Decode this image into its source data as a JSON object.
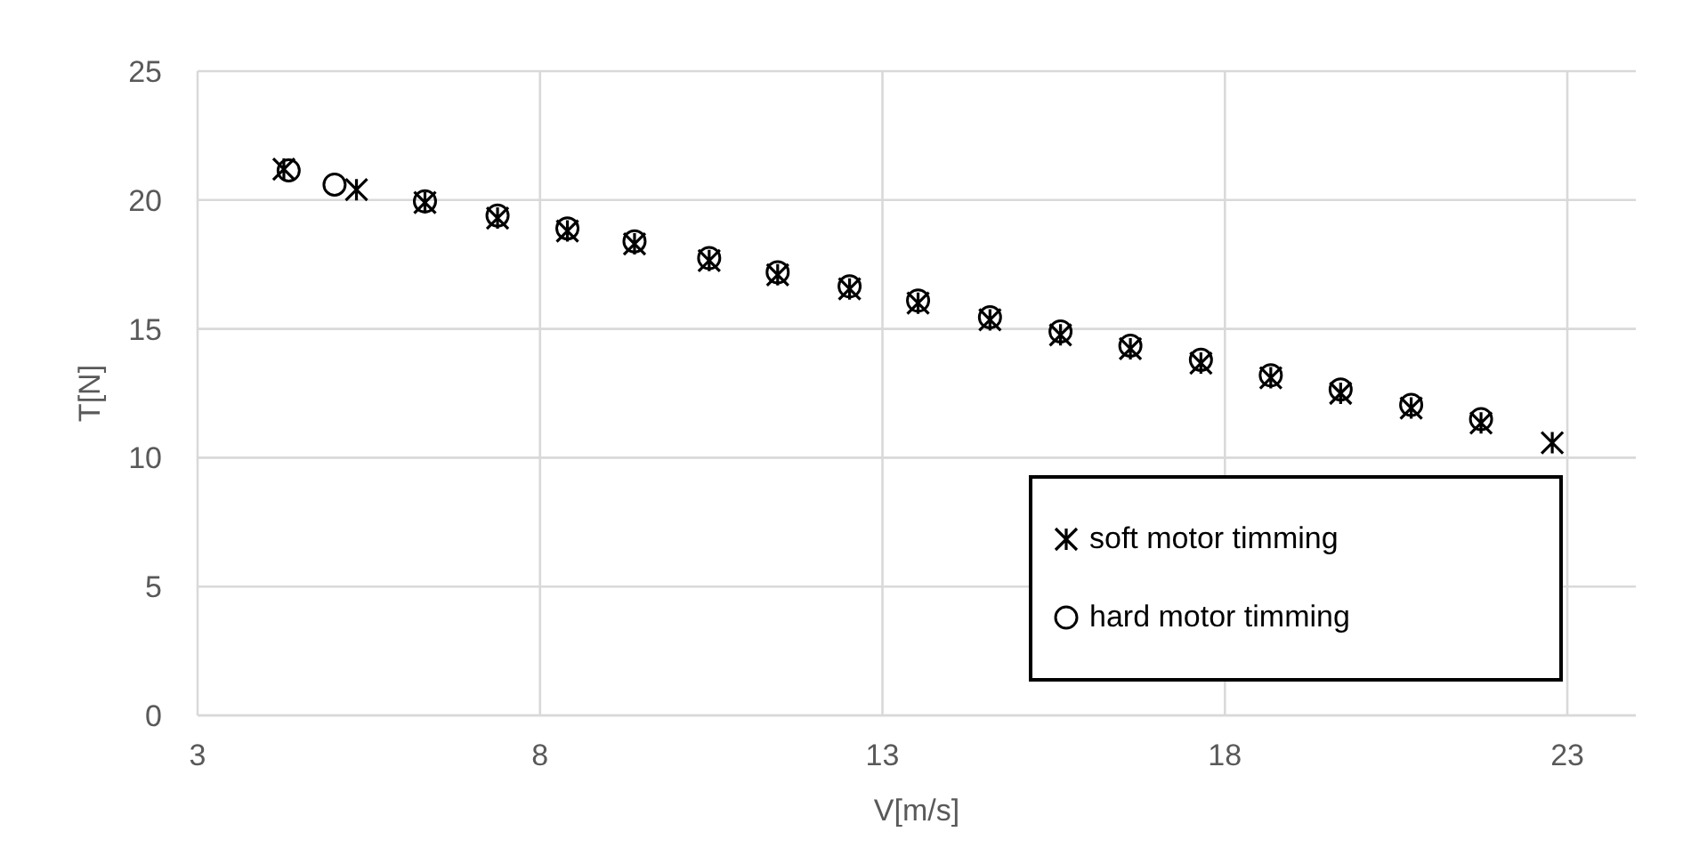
{
  "chart_data": {
    "type": "scatter",
    "xlabel": "V[m/s]",
    "ylabel": "T[N]",
    "xlim": [
      3,
      24
    ],
    "xticks": [
      3,
      8,
      13,
      18,
      23
    ],
    "ylim": [
      0,
      25
    ],
    "yticks": [
      0,
      5,
      10,
      15,
      20,
      25
    ],
    "grid": true,
    "legend": "bottom right",
    "series": [
      {
        "name": "soft motor timming",
        "color": "#000000",
        "marker": "cross",
        "x": [
          4.26,
          5.32,
          6.32,
          7.38,
          8.4,
          9.38,
          10.47,
          11.47,
          12.52,
          13.52,
          14.57,
          15.6,
          16.62,
          17.65,
          18.67,
          19.69,
          20.72,
          21.74,
          22.78
        ],
        "values": [
          21.2,
          20.4,
          19.9,
          19.3,
          18.8,
          18.3,
          17.65,
          17.1,
          16.55,
          16.0,
          15.35,
          14.77,
          14.23,
          13.67,
          13.1,
          12.5,
          11.93,
          11.35,
          10.58
        ]
      },
      {
        "name": "hard motor timming",
        "color": "#000000",
        "marker": "circle",
        "x": [
          4.33,
          5.0,
          6.32,
          7.38,
          8.4,
          9.38,
          10.47,
          11.47,
          12.52,
          13.52,
          14.57,
          15.6,
          16.62,
          17.65,
          18.67,
          19.69,
          20.72,
          21.74
        ],
        "values": [
          21.15,
          20.6,
          19.95,
          19.4,
          18.9,
          18.4,
          17.75,
          17.2,
          16.65,
          16.1,
          15.45,
          14.9,
          14.35,
          13.8,
          13.2,
          12.65,
          12.05,
          11.5
        ]
      }
    ]
  }
}
